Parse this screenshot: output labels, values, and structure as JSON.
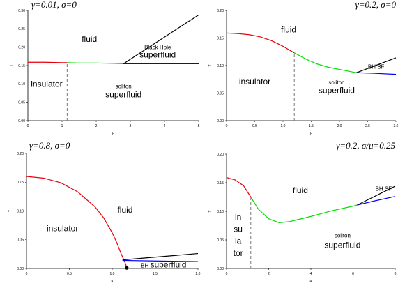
{
  "chart_data": [
    {
      "type": "line",
      "title": "γ=0.01, σ=0",
      "xlabel": "μ",
      "ylabel": "T",
      "xlim": [
        0,
        5
      ],
      "ylim": [
        0,
        0.3
      ],
      "xticks": [
        "0",
        "1",
        "2",
        "3",
        "4",
        "5"
      ],
      "yticks": [
        "0.00",
        "0.05",
        "0.10",
        "0.15",
        "0.20",
        "0.25",
        "0.30"
      ],
      "series": [
        {
          "color": "#e8000b",
          "points": [
            [
              0,
              0.159
            ],
            [
              0.5,
              0.159
            ],
            [
              1.0,
              0.158
            ],
            [
              1.15,
              0.158
            ]
          ]
        },
        {
          "color": "#00dd00",
          "points": [
            [
              1.15,
              0.158
            ],
            [
              1.5,
              0.157
            ],
            [
              2.0,
              0.157
            ],
            [
              2.5,
              0.156
            ],
            [
              2.8,
              0.155
            ]
          ]
        },
        {
          "color": "#0000ff",
          "points": [
            [
              2.8,
              0.155
            ],
            [
              3.5,
              0.155
            ],
            [
              4.2,
              0.155
            ],
            [
              5.0,
              0.155
            ]
          ]
        },
        {
          "color": "#000000",
          "points": [
            [
              2.8,
              0.155
            ],
            [
              5.0,
              0.288
            ]
          ]
        }
      ],
      "dashed": [
        {
          "x": 1.15,
          "y1": 0,
          "y2": 0.158
        }
      ],
      "labels": [
        {
          "text": "fluid",
          "x": 1.8,
          "y": 0.215,
          "size": "big"
        },
        {
          "text": "Black Hole",
          "x": 3.8,
          "y": 0.195,
          "size": "small"
        },
        {
          "text": "superfluid",
          "x": 3.8,
          "y": 0.172,
          "size": "big"
        },
        {
          "text": "insulator",
          "x": 0.55,
          "y": 0.092,
          "size": "big"
        },
        {
          "text": "soliton",
          "x": 2.8,
          "y": 0.088,
          "size": "small"
        },
        {
          "text": "superfluid",
          "x": 2.8,
          "y": 0.064,
          "size": "big"
        }
      ]
    },
    {
      "type": "line",
      "title": "γ=0.2, σ=0",
      "xlabel": "μ",
      "ylabel": "T",
      "xlim": [
        0,
        3.0
      ],
      "ylim": [
        0,
        0.2
      ],
      "xticks": [
        "0",
        "0.5",
        "1.0",
        "1.5",
        "2.0",
        "2.5",
        "3.0"
      ],
      "yticks": [
        "0.00",
        "0.05",
        "0.10",
        "0.15",
        "0.20"
      ],
      "series": [
        {
          "color": "#e8000b",
          "points": [
            [
              0,
              0.159
            ],
            [
              0.2,
              0.158
            ],
            [
              0.4,
              0.156
            ],
            [
              0.6,
              0.152
            ],
            [
              0.8,
              0.145
            ],
            [
              1.0,
              0.135
            ],
            [
              1.2,
              0.123
            ]
          ]
        },
        {
          "color": "#00dd00",
          "points": [
            [
              1.2,
              0.123
            ],
            [
              1.4,
              0.112
            ],
            [
              1.6,
              0.103
            ],
            [
              1.8,
              0.097
            ],
            [
              2.0,
              0.093
            ],
            [
              2.2,
              0.089
            ],
            [
              2.3,
              0.087
            ]
          ]
        },
        {
          "color": "#0000ff",
          "points": [
            [
              2.3,
              0.087
            ],
            [
              2.6,
              0.086
            ],
            [
              3.0,
              0.084
            ]
          ]
        },
        {
          "color": "#000000",
          "points": [
            [
              2.3,
              0.087
            ],
            [
              3.0,
              0.114
            ]
          ]
        }
      ],
      "dashed": [
        {
          "x": 1.2,
          "y1": 0,
          "y2": 0.123
        }
      ],
      "labels": [
        {
          "text": "fluid",
          "x": 1.1,
          "y": 0.16,
          "size": "big"
        },
        {
          "text": "BH SF",
          "x": 2.65,
          "y": 0.094,
          "size": "small"
        },
        {
          "text": "insulator",
          "x": 0.5,
          "y": 0.066,
          "size": "big"
        },
        {
          "text": "soliton",
          "x": 1.95,
          "y": 0.066,
          "size": "small"
        },
        {
          "text": "superfluid",
          "x": 1.95,
          "y": 0.05,
          "size": "big"
        }
      ]
    },
    {
      "type": "line",
      "title": "γ=0.8, σ=0",
      "xlabel": "μ",
      "ylabel": "T",
      "xlim": [
        0,
        2.0
      ],
      "ylim": [
        0,
        0.2
      ],
      "xticks": [
        "0",
        "0.5",
        "1.0",
        "1.5",
        "2.0"
      ],
      "yticks": [
        "0.00",
        "0.05",
        "0.10",
        "0.15",
        "0.20"
      ],
      "series": [
        {
          "color": "#e8000b",
          "points": [
            [
              0,
              0.16
            ],
            [
              0.2,
              0.157
            ],
            [
              0.4,
              0.149
            ],
            [
              0.6,
              0.133
            ],
            [
              0.8,
              0.107
            ],
            [
              0.9,
              0.088
            ],
            [
              1.0,
              0.062
            ],
            [
              1.05,
              0.046
            ],
            [
              1.1,
              0.027
            ],
            [
              1.15,
              0.01
            ],
            [
              1.17,
              0.002
            ]
          ]
        },
        {
          "color": "#0000ff",
          "points": [
            [
              1.12,
              0.014
            ],
            [
              1.5,
              0.013
            ],
            [
              2.0,
              0.012
            ]
          ]
        },
        {
          "color": "#000000",
          "points": [
            [
              1.12,
              0.015
            ],
            [
              2.0,
              0.026
            ]
          ]
        }
      ],
      "dots": [
        {
          "x": 1.17,
          "y": 0.001
        }
      ],
      "labels": [
        {
          "text": "fluid",
          "x": 1.15,
          "y": 0.097,
          "size": "big"
        },
        {
          "text": "insulator",
          "x": 0.42,
          "y": 0.065,
          "size": "big"
        },
        {
          "text": "BH superfluid",
          "x": 1.6,
          "y": 0.002,
          "size": "mixed"
        }
      ]
    },
    {
      "type": "line",
      "title": "γ=0.2, σ/μ=0.25",
      "xlabel": "μ",
      "ylabel": "T",
      "xlim": [
        0,
        8
      ],
      "ylim": [
        0,
        0.2
      ],
      "xticks": [
        "0",
        "2",
        "4",
        "6",
        "8"
      ],
      "yticks": [
        "0.00",
        "0.05",
        "0.10",
        "0.15",
        "0.20"
      ],
      "series": [
        {
          "color": "#e8000b",
          "points": [
            [
              0,
              0.159
            ],
            [
              0.4,
              0.155
            ],
            [
              0.8,
              0.145
            ],
            [
              1.15,
              0.125
            ]
          ]
        },
        {
          "color": "#00dd00",
          "points": [
            [
              1.15,
              0.125
            ],
            [
              1.5,
              0.104
            ],
            [
              2.0,
              0.087
            ],
            [
              2.5,
              0.08
            ],
            [
              3.0,
              0.082
            ],
            [
              4.0,
              0.091
            ],
            [
              5.0,
              0.101
            ],
            [
              6.0,
              0.109
            ],
            [
              6.2,
              0.111
            ]
          ]
        },
        {
          "color": "#0000ff",
          "points": [
            [
              6.2,
              0.111
            ],
            [
              7.0,
              0.118
            ],
            [
              8.0,
              0.126
            ]
          ]
        },
        {
          "color": "#000000",
          "points": [
            [
              6.2,
              0.111
            ],
            [
              8.0,
              0.144
            ]
          ]
        }
      ],
      "dashed": [
        {
          "x": 1.15,
          "y1": 0,
          "y2": 0.125
        }
      ],
      "labels": [
        {
          "text": "fluid",
          "x": 3.5,
          "y": 0.132,
          "size": "big"
        },
        {
          "text": "BH SF",
          "x": 7.45,
          "y": 0.136,
          "size": "small"
        },
        {
          "text": "in",
          "x": 0.55,
          "y": 0.085,
          "size": "big"
        },
        {
          "text": "su",
          "x": 0.55,
          "y": 0.064,
          "size": "big"
        },
        {
          "text": "la",
          "x": 0.55,
          "y": 0.043,
          "size": "big"
        },
        {
          "text": "tor",
          "x": 0.55,
          "y": 0.022,
          "size": "big"
        },
        {
          "text": "soliton",
          "x": 5.5,
          "y": 0.054,
          "size": "small"
        },
        {
          "text": "superfluid",
          "x": 5.5,
          "y": 0.036,
          "size": "big"
        }
      ]
    }
  ]
}
